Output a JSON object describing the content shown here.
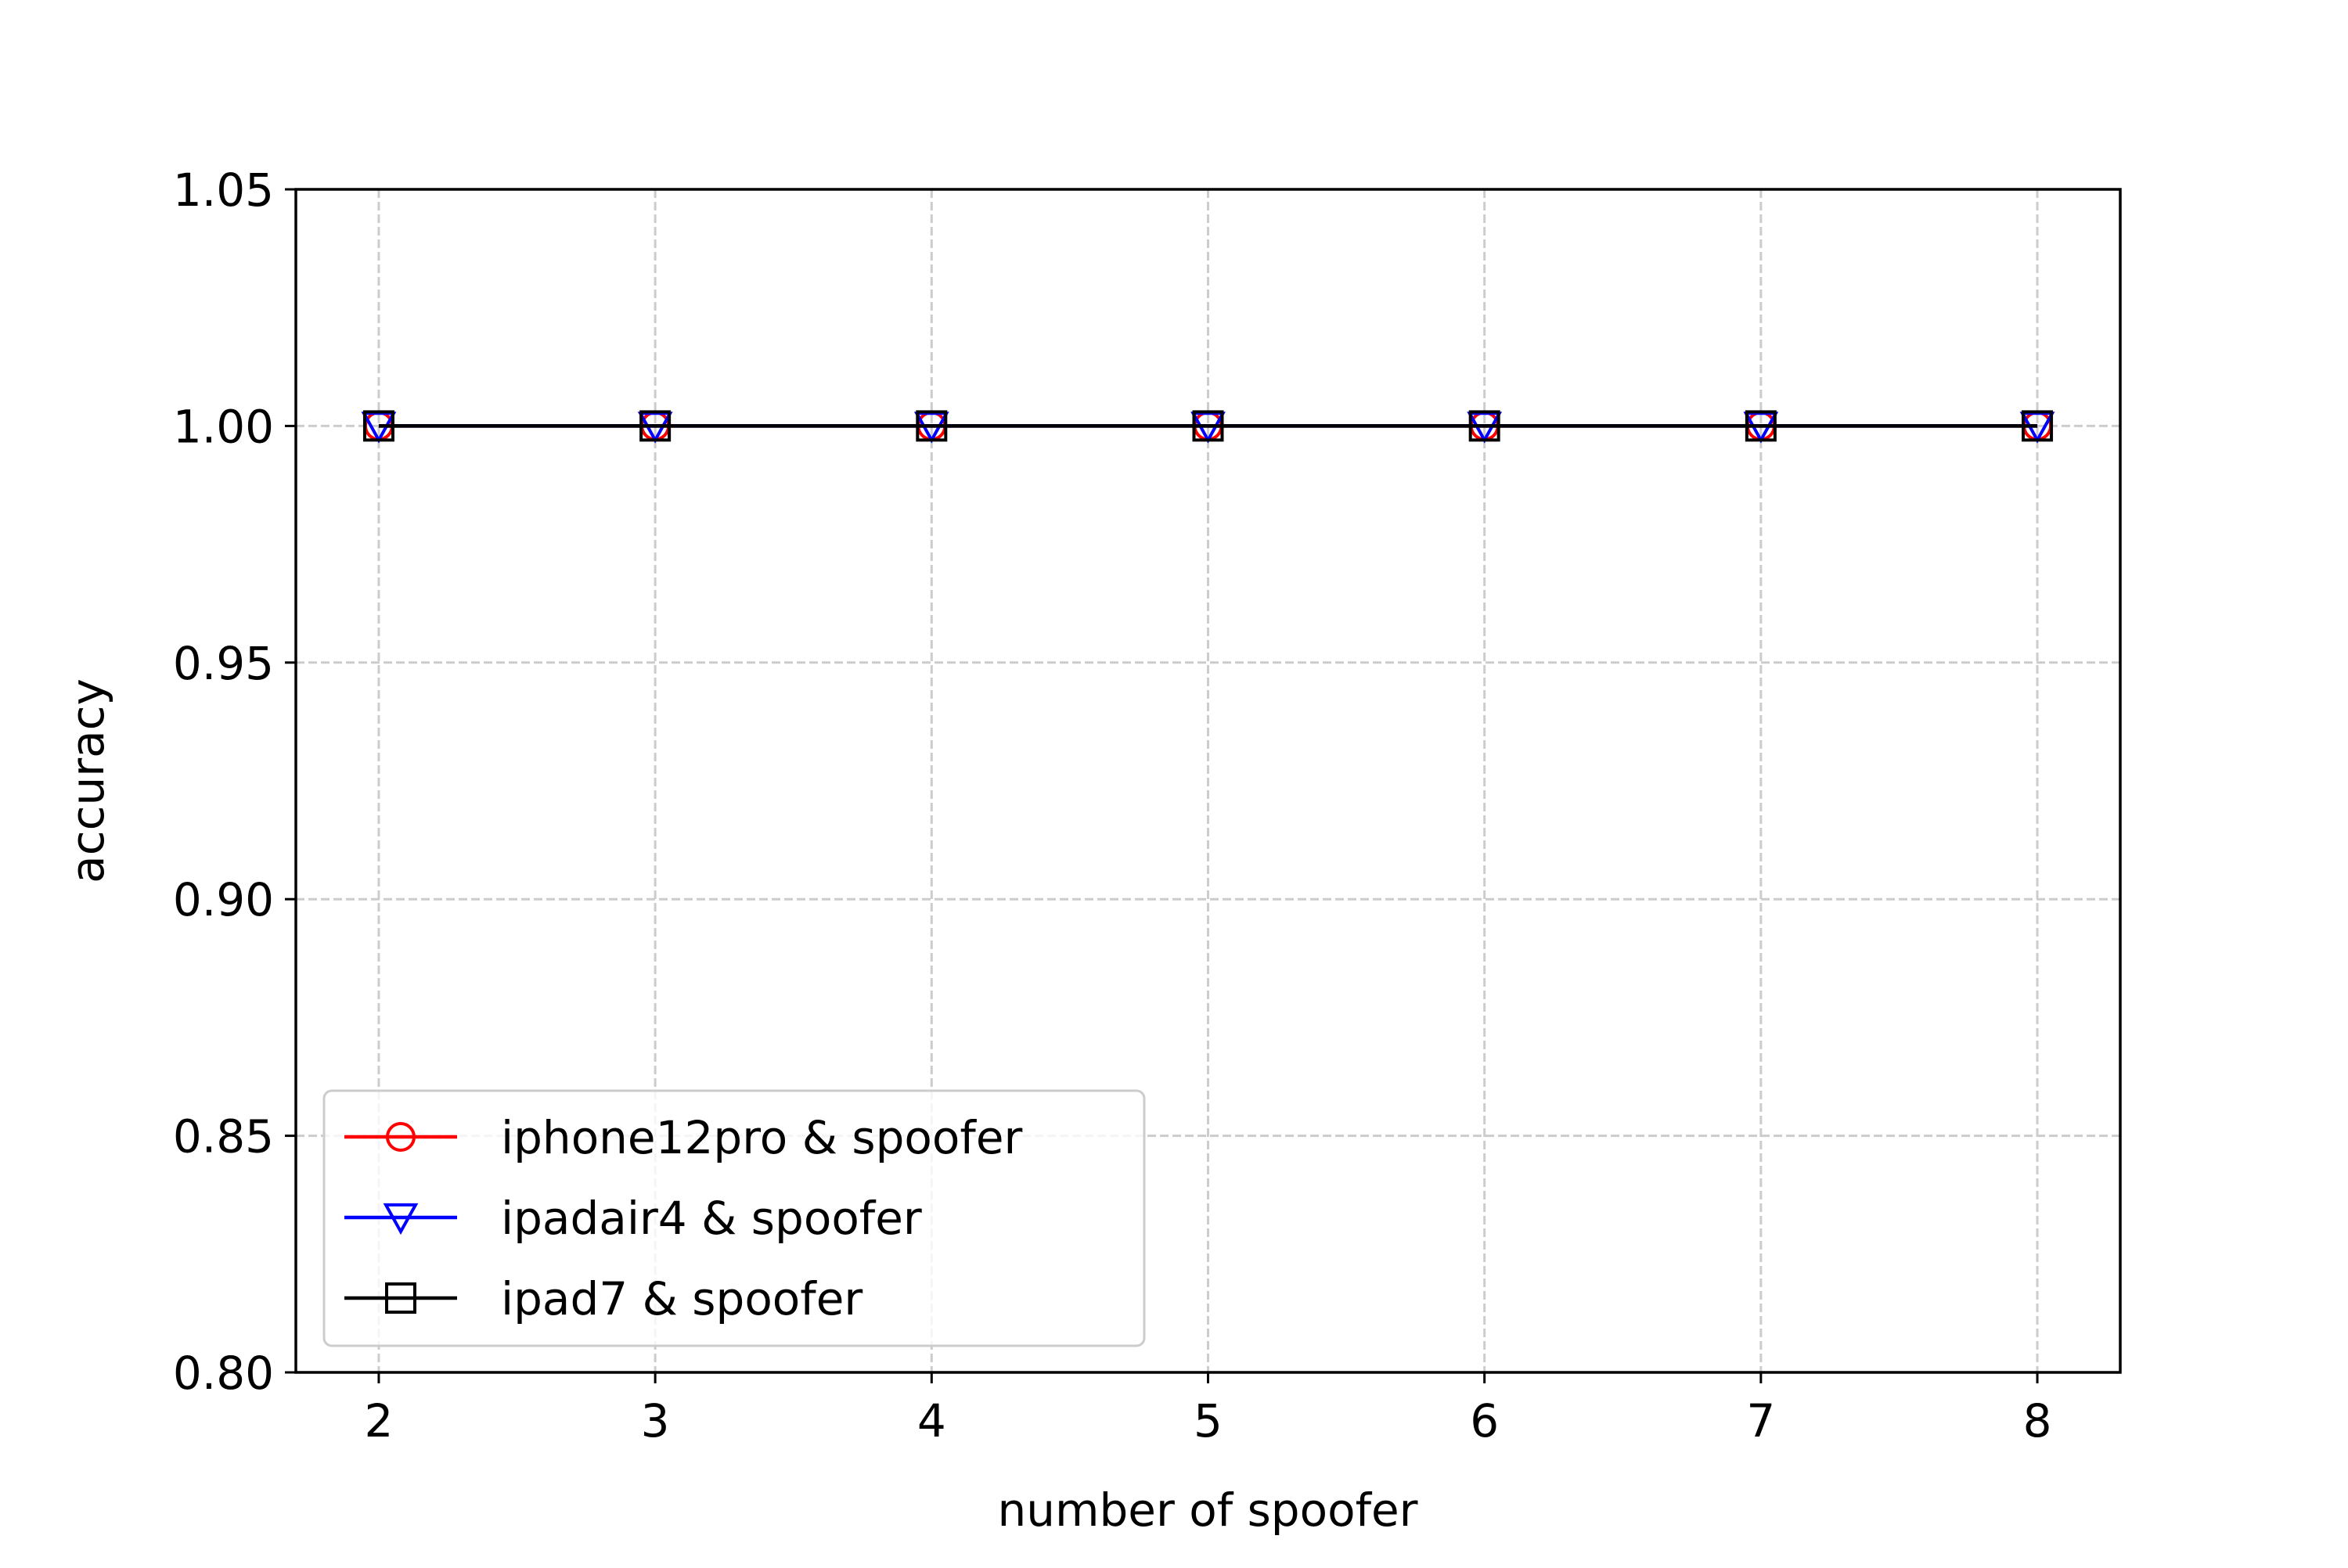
{
  "chart_data": {
    "type": "line",
    "title": "",
    "xlabel": "number of spoofer",
    "ylabel": "accuracy",
    "x": [
      2,
      3,
      4,
      5,
      6,
      7,
      8
    ],
    "xlim": [
      1.7,
      8.3
    ],
    "ylim": [
      0.8,
      1.05
    ],
    "xticks": [
      2,
      3,
      4,
      5,
      6,
      7,
      8
    ],
    "yticks": [
      0.8,
      0.85,
      0.9,
      0.95,
      1.0,
      1.05
    ],
    "ytick_labels": [
      "0.80",
      "0.85",
      "0.90",
      "0.95",
      "1.00",
      "1.05"
    ],
    "grid": true,
    "legend_position": "lower-left",
    "series": [
      {
        "name": "iphone12pro & spoofer",
        "color": "#ff0000",
        "marker": "circle",
        "values": [
          1.0,
          1.0,
          1.0,
          1.0,
          1.0,
          1.0,
          1.0
        ]
      },
      {
        "name": "ipadair4 & spoofer",
        "color": "#0000ff",
        "marker": "triangle-down",
        "values": [
          1.0,
          1.0,
          1.0,
          1.0,
          1.0,
          1.0,
          1.0
        ]
      },
      {
        "name": "ipad7 & spoofer",
        "color": "#000000",
        "marker": "square",
        "values": [
          1.0,
          1.0,
          1.0,
          1.0,
          1.0,
          1.0,
          1.0
        ]
      }
    ]
  }
}
